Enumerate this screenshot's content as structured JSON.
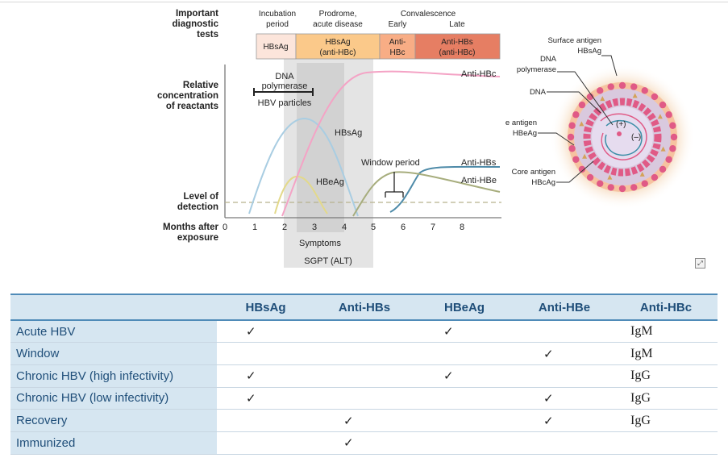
{
  "figure": {
    "left_labels": {
      "tests_line1": "Important",
      "tests_line2": "diagnostic",
      "tests_line3": "tests",
      "conc_line1": "Relative",
      "conc_line2": "concentration",
      "conc_line3": "of reactants",
      "detect_line1": "Level of",
      "detect_line2": "detection",
      "months_line1": "Months after",
      "months_line2": "exposure"
    },
    "phases": {
      "incubation_line1": "Incubation",
      "incubation_line2": "period",
      "prodrome_line1": "Prodrome,",
      "prodrome_line2": "acute disease",
      "convalescence": "Convalescence",
      "early": "Early",
      "late": "Late"
    },
    "test_bands": [
      {
        "line1": "HBsAg",
        "line2": "",
        "color": "#fce5db"
      },
      {
        "line1": "HBsAg",
        "line2": "(anti-HBc)",
        "color": "#fbc98a"
      },
      {
        "line1": "Anti-",
        "line2": "HBc",
        "color": "#f8ad85"
      },
      {
        "line1": "Anti-HBs",
        "line2": "(anti-HBc)",
        "color": "#e67e63"
      }
    ],
    "x_ticks": [
      "0",
      "1",
      "2",
      "3",
      "4",
      "5",
      "6",
      "7",
      "8"
    ],
    "curve_labels": {
      "anti_hbc": "Anti-HBc",
      "hbsag": "HBsAg",
      "anti_hbs": "Anti-HBs",
      "anti_hbe": "Anti-HBe",
      "hbeag": "HBeAg"
    },
    "annotations": {
      "dna_line1": "DNA",
      "dna_line2": "polymerase",
      "hbv_particles": "HBV particles",
      "window_period": "Window period",
      "symptoms": "Symptoms",
      "sgpt": "SGPT (ALT)"
    },
    "virion": {
      "surface_line1": "Surface antigen",
      "surface_line2": "HBsAg",
      "dnapol_line1": "DNA",
      "dnapol_line2": "polymerase",
      "dna": "DNA",
      "eag_line1": "e antigen",
      "eag_line2": "HBeAg",
      "core_line1": "Core antigen",
      "core_line2": "HBcAg",
      "plus": "(+)",
      "minus": "(–)"
    },
    "colors": {
      "hbsag": "#a9cde2",
      "hbeag": "#e3d98a",
      "anti_hbc": "#f4a3c5",
      "anti_hbs": "#4d8aa8",
      "anti_hbe": "#a7ad7d",
      "detection_line": "#b7b28e",
      "shaded_region": "#e3e3e3"
    },
    "corner_icon": "expand-icon"
  },
  "table": {
    "headers": [
      "",
      "HBsAg",
      "Anti-HBs",
      "HBeAg",
      "Anti-HBe",
      "Anti-HBc"
    ],
    "rows": [
      {
        "label": "Acute HBV",
        "hbsag": "✓",
        "anti_hbs": "",
        "hbeag": "✓",
        "anti_hbe": "",
        "anti_hbc": "IgM"
      },
      {
        "label": "Window",
        "hbsag": "",
        "anti_hbs": "",
        "hbeag": "",
        "anti_hbe": "✓",
        "anti_hbc": "IgM"
      },
      {
        "label": "Chronic HBV (high infectivity)",
        "hbsag": "✓",
        "anti_hbs": "",
        "hbeag": "✓",
        "anti_hbe": "",
        "anti_hbc": "IgG"
      },
      {
        "label": "Chronic HBV (low infectivity)",
        "hbsag": "✓",
        "anti_hbs": "",
        "hbeag": "",
        "anti_hbe": "✓",
        "anti_hbc": "IgG"
      },
      {
        "label": "Recovery",
        "hbsag": "",
        "anti_hbs": "✓",
        "hbeag": "",
        "anti_hbe": "✓",
        "anti_hbc": "IgG"
      },
      {
        "label": "Immunized",
        "hbsag": "",
        "anti_hbs": "✓",
        "hbeag": "",
        "anti_hbe": "",
        "anti_hbc": ""
      }
    ]
  }
}
